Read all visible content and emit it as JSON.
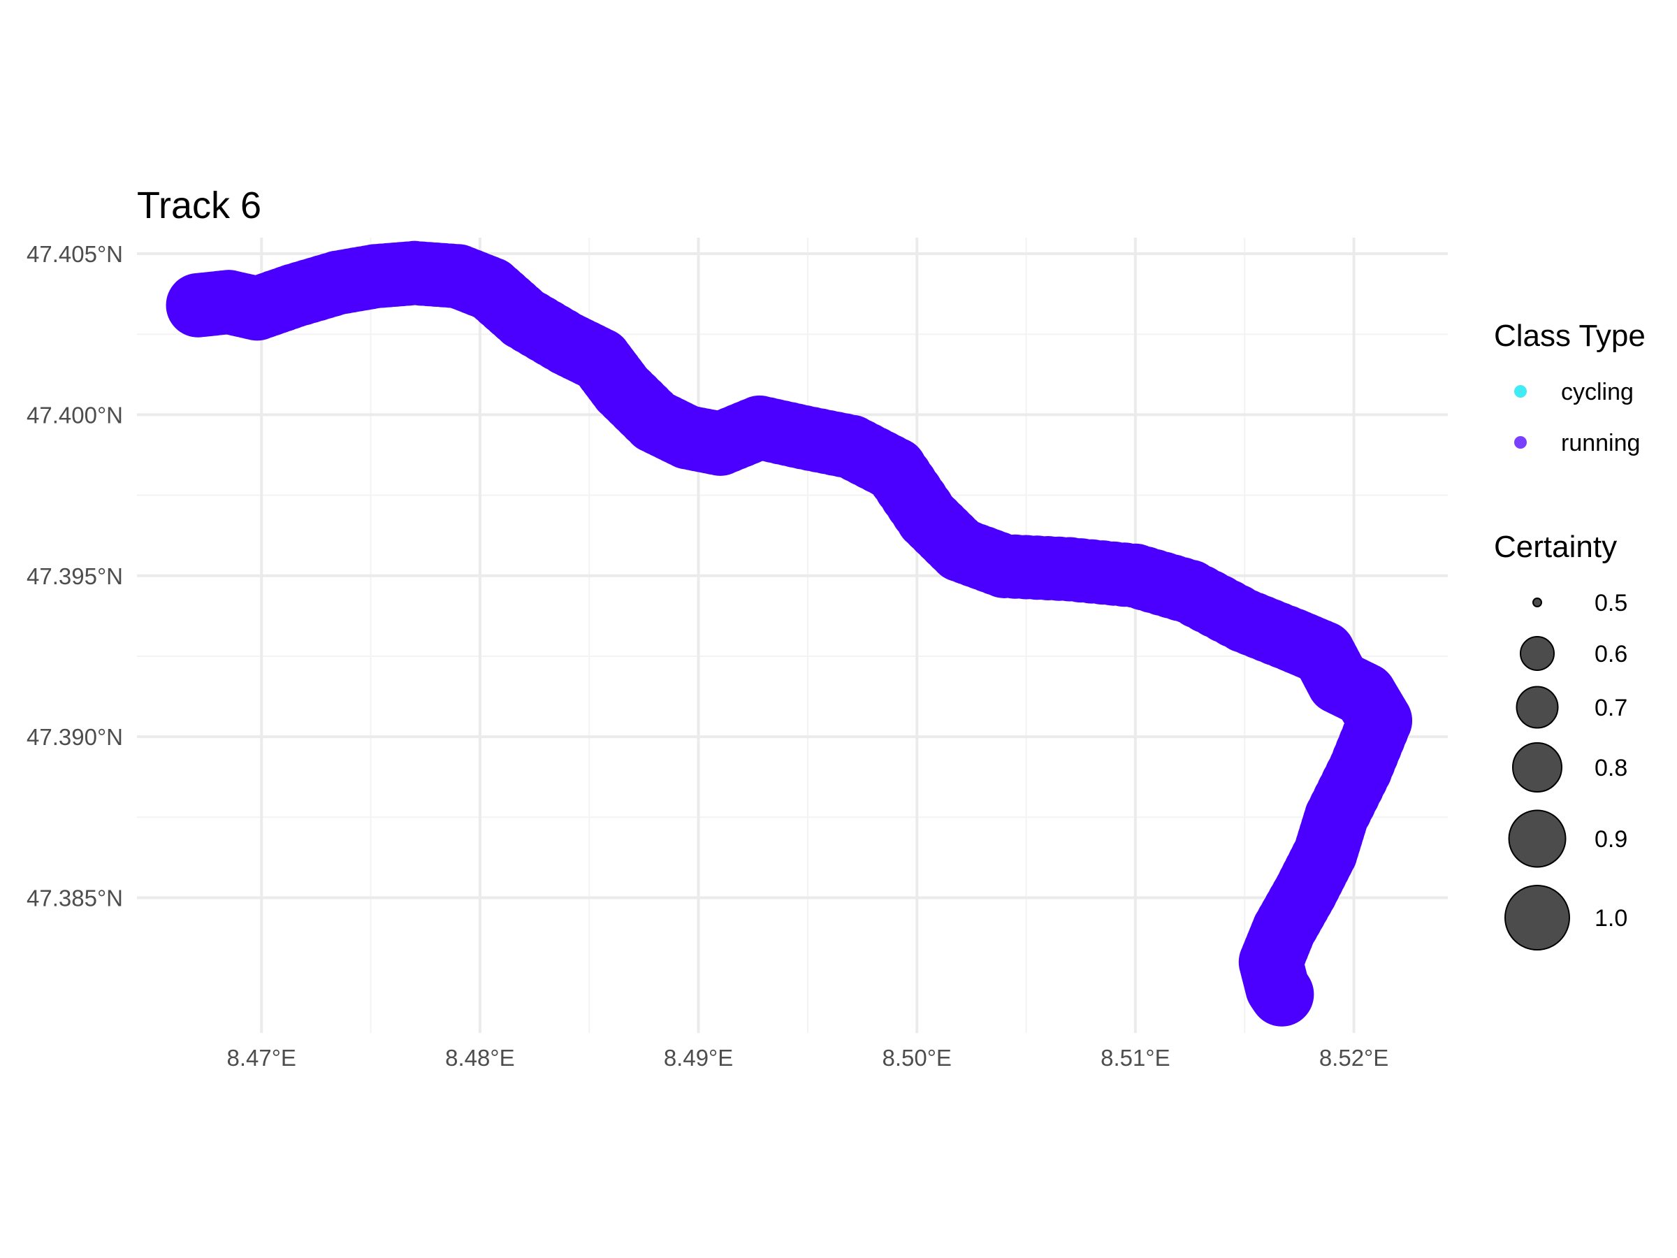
{
  "chart_data": {
    "type": "scatter",
    "title": "Track 6",
    "xlabel": "",
    "ylabel": "",
    "xlim": [
      8.4643,
      8.5243
    ],
    "ylim": [
      47.3808,
      47.4055
    ],
    "x_ticks": [
      8.47,
      8.48,
      8.49,
      8.5,
      8.51,
      8.52
    ],
    "x_tick_labels": [
      "8.47°E",
      "8.48°E",
      "8.49°E",
      "8.50°E",
      "8.51°E",
      "8.52°E"
    ],
    "y_ticks": [
      47.385,
      47.39,
      47.395,
      47.4,
      47.405
    ],
    "y_tick_labels": [
      "47.385°N",
      "47.390°N",
      "47.395°N",
      "47.400°N",
      "47.405°N"
    ],
    "grid": true,
    "legend_position": "right",
    "color_legend": {
      "title": "Class Type",
      "entries": [
        {
          "label": "cycling",
          "color": "#00E5EE"
        },
        {
          "label": "running",
          "color": "#4B00FF"
        }
      ]
    },
    "size_legend": {
      "title": "Certainty",
      "entries": [
        {
          "label": "0.5",
          "value": 0.5
        },
        {
          "label": "0.6",
          "value": 0.6
        },
        {
          "label": "0.7",
          "value": 0.7
        },
        {
          "label": "0.8",
          "value": 0.8
        },
        {
          "label": "0.9",
          "value": 0.9
        },
        {
          "label": "1.0",
          "value": 1.0
        }
      ]
    },
    "series": [
      {
        "name": "running",
        "color": "#4B00FF",
        "certainty": 1.0,
        "points": [
          [
            8.4671,
            47.4034
          ],
          [
            8.4685,
            47.4035
          ],
          [
            8.4698,
            47.4033
          ],
          [
            8.4715,
            47.4037
          ],
          [
            8.4735,
            47.4041
          ],
          [
            8.4752,
            47.4043
          ],
          [
            8.477,
            47.4044
          ],
          [
            8.479,
            47.4043
          ],
          [
            8.4805,
            47.4039
          ],
          [
            8.482,
            47.403
          ],
          [
            8.484,
            47.4022
          ],
          [
            8.4855,
            47.4017
          ],
          [
            8.4865,
            47.4008
          ],
          [
            8.488,
            47.3998
          ],
          [
            8.4895,
            47.3993
          ],
          [
            8.491,
            47.3991
          ],
          [
            8.4928,
            47.3996
          ],
          [
            8.4948,
            47.3993
          ],
          [
            8.497,
            47.399
          ],
          [
            8.499,
            47.3983
          ],
          [
            8.5005,
            47.3968
          ],
          [
            8.502,
            47.3958
          ],
          [
            8.504,
            47.3953
          ],
          [
            8.507,
            47.3952
          ],
          [
            8.51,
            47.395
          ],
          [
            8.5125,
            47.3945
          ],
          [
            8.515,
            47.3936
          ],
          [
            8.5172,
            47.393
          ],
          [
            8.5186,
            47.3926
          ],
          [
            8.5193,
            47.3917
          ],
          [
            8.5205,
            47.3913
          ],
          [
            8.5212,
            47.3905
          ],
          [
            8.5203,
            47.389
          ],
          [
            8.5192,
            47.3875
          ],
          [
            8.5187,
            47.3864
          ],
          [
            8.5178,
            47.3852
          ],
          [
            8.5168,
            47.384
          ],
          [
            8.5162,
            47.383
          ],
          [
            8.5165,
            47.3822
          ],
          [
            8.5167,
            47.382
          ]
        ]
      }
    ]
  }
}
